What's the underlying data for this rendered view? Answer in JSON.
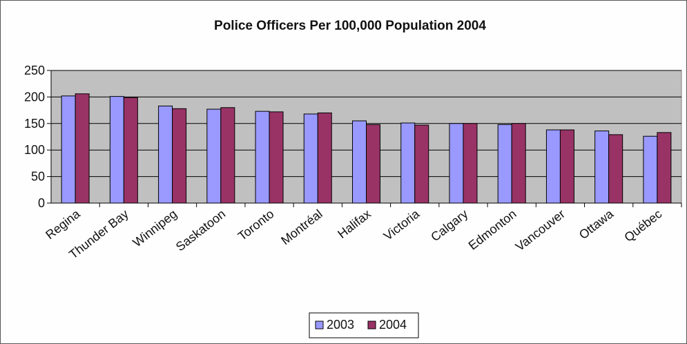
{
  "chart_data": {
    "type": "bar",
    "title": "Police Officers Per 100,000 Population 2004",
    "categories": [
      "Regina",
      "Thunder Bay",
      "Winnipeg",
      "Saskatoon",
      "Toronto",
      "Montréal",
      "Halifax",
      "Victoria",
      "Calgary",
      "Edmonton",
      "Vancouver",
      "Ottawa",
      "Québec"
    ],
    "series": [
      {
        "name": "2003",
        "color": "#9999ff",
        "values": [
          202,
          201,
          183,
          177,
          173,
          168,
          155,
          151,
          150,
          148,
          138,
          136,
          126
        ]
      },
      {
        "name": "2004",
        "color": "#993366",
        "values": [
          206,
          199,
          178,
          180,
          172,
          170,
          148,
          147,
          150,
          150,
          138,
          129,
          133
        ]
      }
    ],
    "ylim": [
      0,
      250
    ],
    "yticks": [
      "0",
      "50",
      "100",
      "150",
      "200",
      "250"
    ],
    "grid": true,
    "plot_background": "#c0c0c0",
    "legend_position": "bottom"
  }
}
